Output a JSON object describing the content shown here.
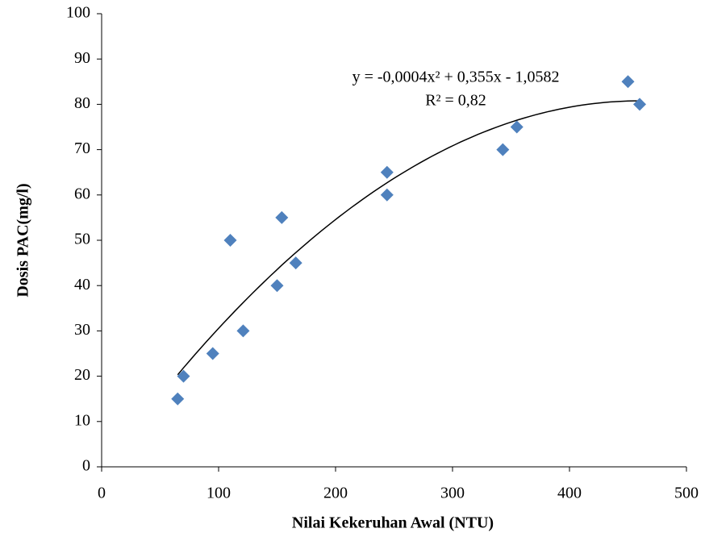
{
  "chart_data": {
    "type": "scatter",
    "x_label": "Nilai Kekeruhan Awal (NTU)",
    "y_label": "Dosis PAC(mg/l)",
    "x": [
      65,
      70,
      95,
      110,
      121,
      150,
      154,
      166,
      244,
      244,
      343,
      355,
      450,
      460
    ],
    "series": [
      {
        "color": "#4f81bd",
        "values": [
          15,
          20,
          25,
          50,
          30,
          40,
          55,
          45,
          65,
          60,
          70,
          75,
          85,
          80
        ]
      }
    ],
    "trendline": {
      "type": "polynomial-2",
      "equation": "y = -0,0004x² + 0,355x - 1,0582",
      "r_squared": "R² = 0,82"
    },
    "xlim": [
      0,
      500
    ],
    "xticks": [
      0,
      100,
      200,
      300,
      400,
      500
    ],
    "ylim": [
      0,
      100
    ],
    "yticks": [
      0,
      10,
      20,
      30,
      40,
      50,
      60,
      70,
      80,
      90,
      100
    ],
    "grid": false
  }
}
